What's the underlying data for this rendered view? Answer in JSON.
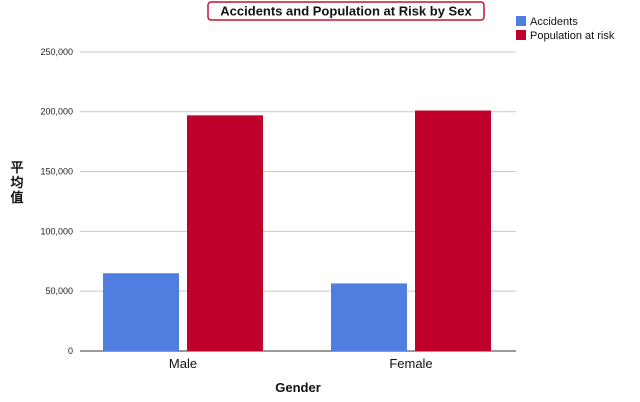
{
  "chart_data": {
    "type": "bar",
    "title": "Accidents and Population at Risk by Sex",
    "xlabel": "Gender",
    "ylabel": "平均值",
    "categories": [
      "Male",
      "Female"
    ],
    "series": [
      {
        "name": "Accidents",
        "values": [
          65000,
          56500
        ],
        "color": "#4e7fe0"
      },
      {
        "name": "Population at risk",
        "values": [
          197000,
          201000
        ],
        "color": "#c0002a"
      }
    ],
    "ylim": [
      0,
      275000
    ],
    "yticks": [
      0,
      50000,
      100000,
      150000,
      200000,
      250000
    ],
    "ytick_labels": [
      "0",
      "50,000",
      "100,000",
      "150,000",
      "200,000",
      "250,000"
    ],
    "grid": true,
    "legend_position": "top-right",
    "title_border_color": "#c8102e"
  }
}
